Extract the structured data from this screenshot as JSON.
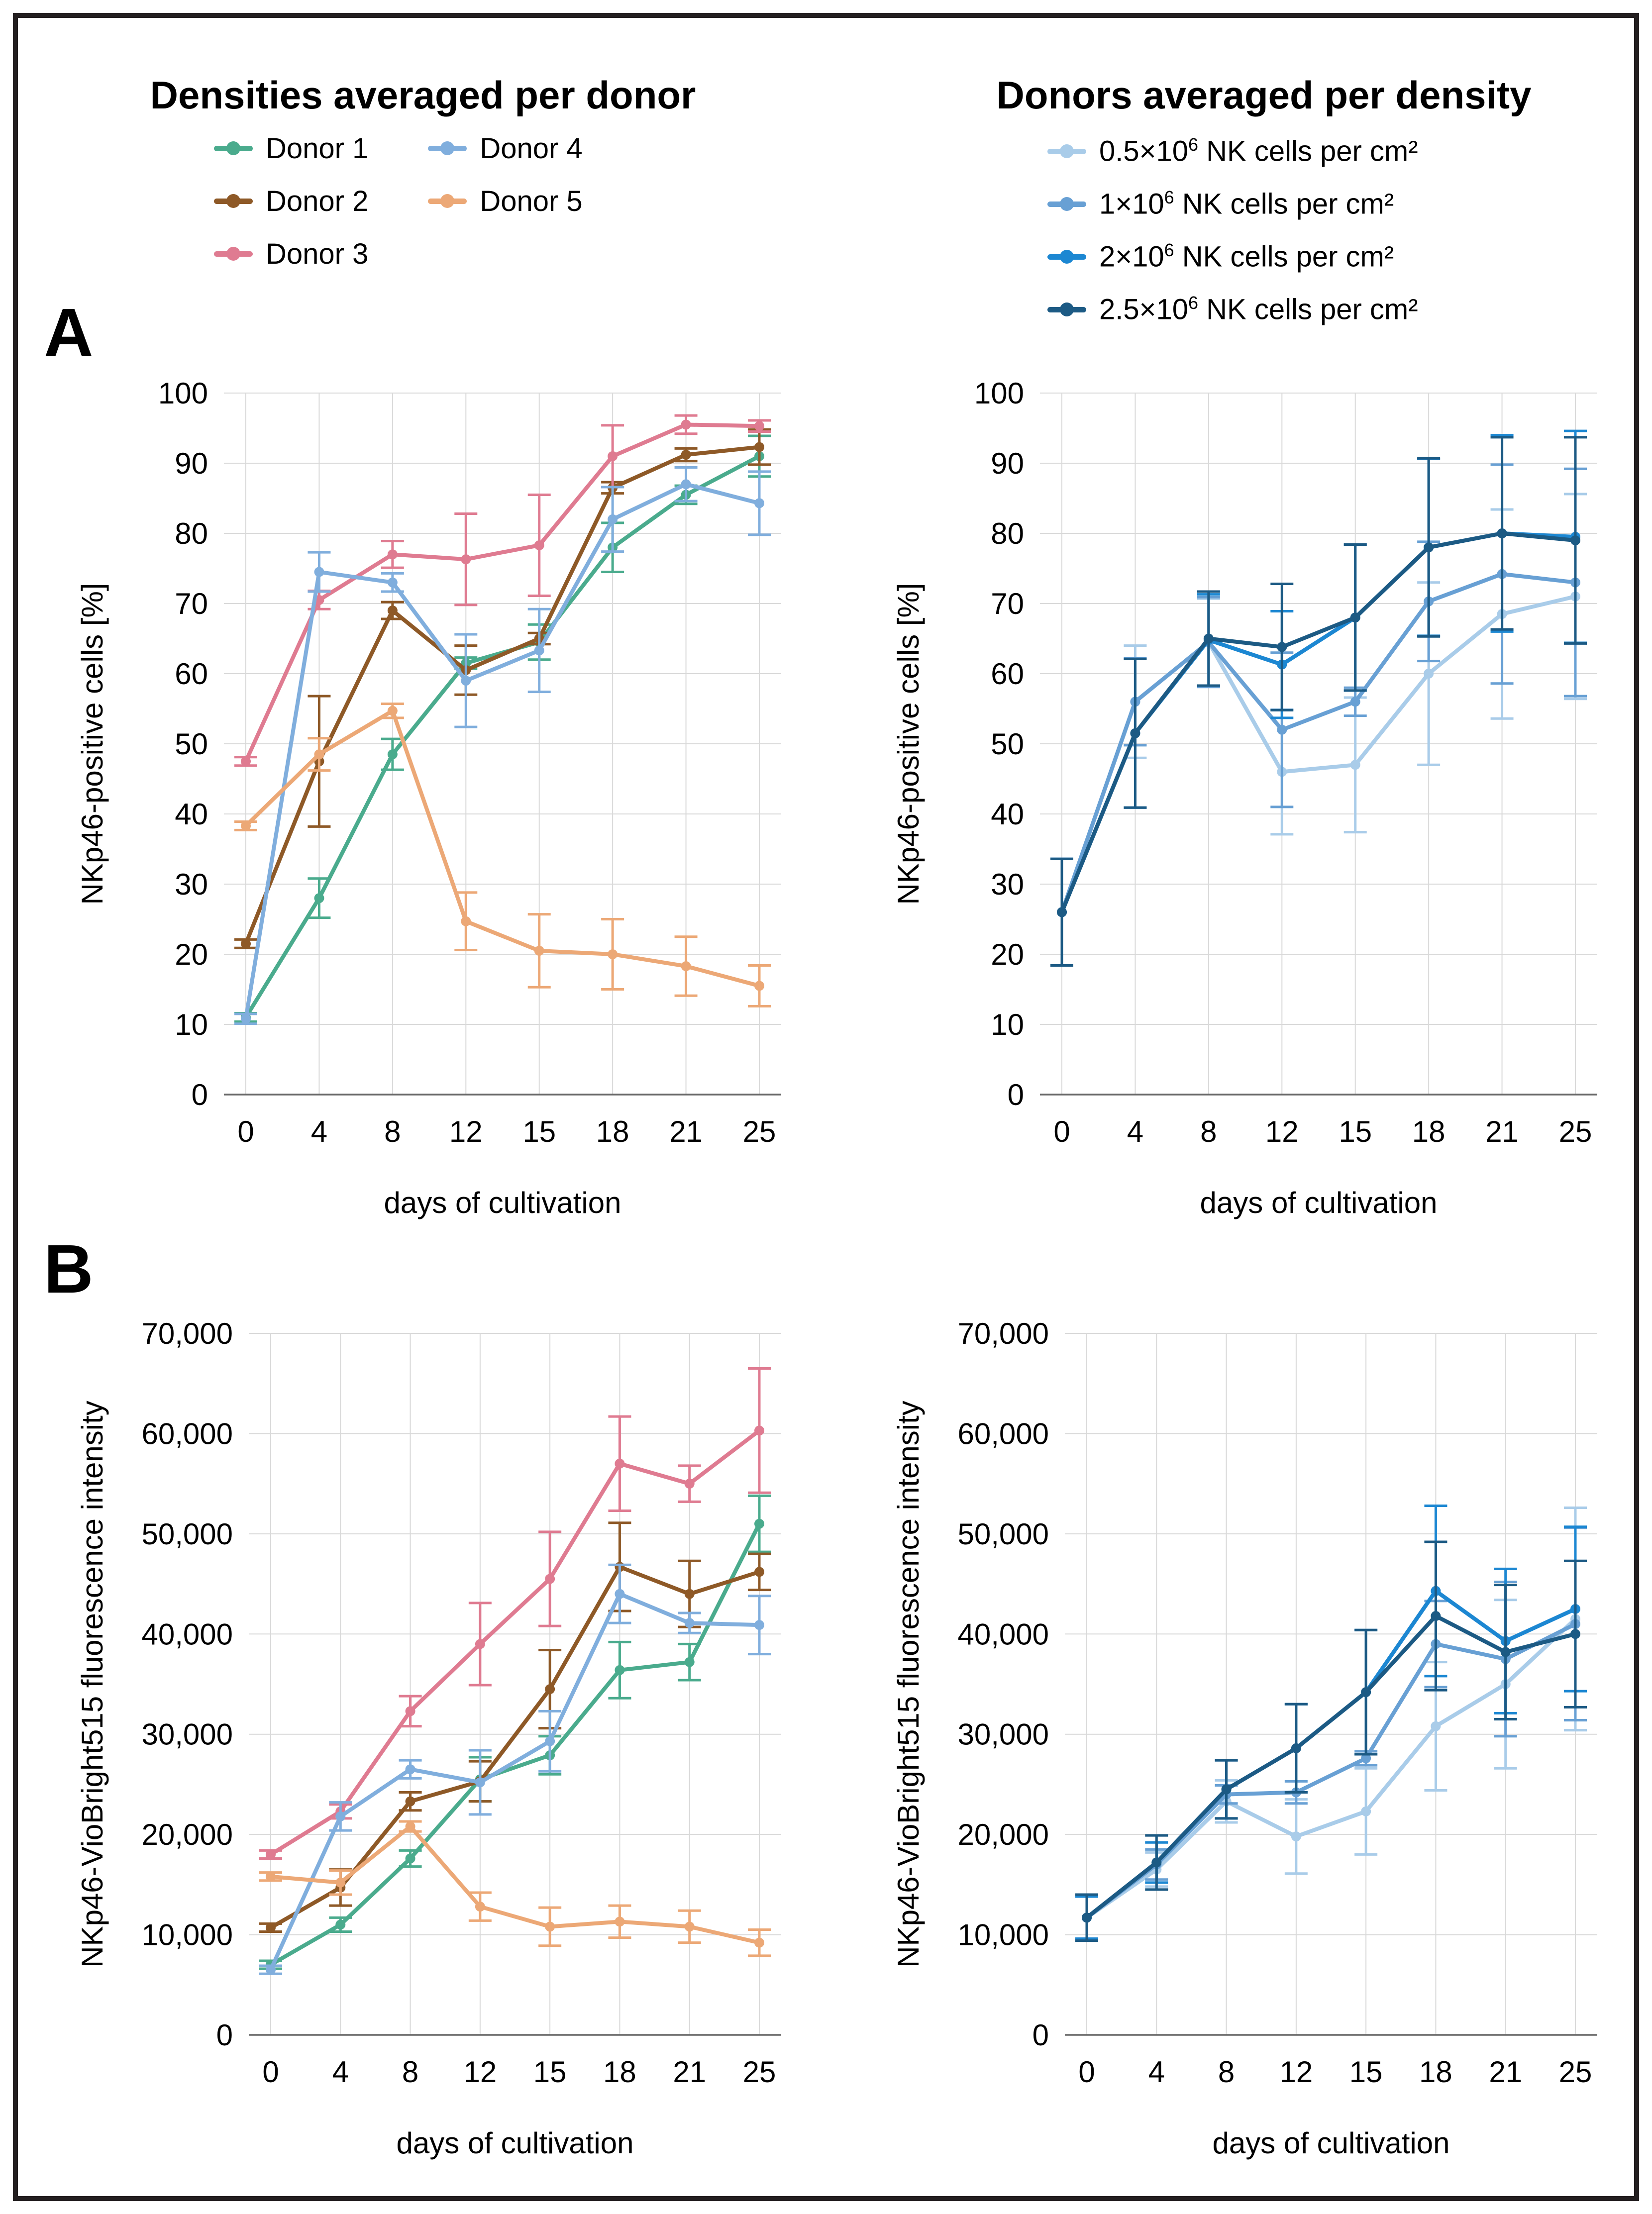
{
  "figure": {
    "panel_a_label": "A",
    "panel_b_label": "B",
    "left_title": "Densities averaged per donor",
    "right_title": "Donors averaged per density",
    "xlabel": "days of cultivation",
    "ylabel_percent": "NKp46-positive cells [%]",
    "ylabel_fluorescence": "NKp46-VioBright515 fluorescence intensity"
  },
  "colors": {
    "donor1": "#4aab8d",
    "donor2": "#8e5927",
    "donor3": "#df7b91",
    "donor4": "#80aedd",
    "donor5": "#eca876",
    "density05": "#a9cce9",
    "density1": "#68a0d4",
    "density2": "#1c87d2",
    "density25": "#1c5a84",
    "gridline": "#d9d9d9",
    "axis": "#6a6a6a"
  },
  "legend_donors": {
    "items": [
      {
        "label": "Donor 1",
        "color": "#4aab8d"
      },
      {
        "label": "Donor 2",
        "color": "#8e5927"
      },
      {
        "label": "Donor 3",
        "color": "#df7b91"
      },
      {
        "label": "Donor 4",
        "color": "#80aedd"
      },
      {
        "label": "Donor 5",
        "color": "#eca876"
      }
    ]
  },
  "legend_densities": {
    "items": [
      {
        "prefix": "0.5×10",
        "sup": "6",
        "suffix": " NK cells per cm²",
        "color": "#a9cce9"
      },
      {
        "prefix": "1×10",
        "sup": "6",
        "suffix": " NK cells per cm²",
        "color": "#68a0d4"
      },
      {
        "prefix": "2×10",
        "sup": "6",
        "suffix": " NK cells per cm²",
        "color": "#1c87d2"
      },
      {
        "prefix": "2.5×10",
        "sup": "6",
        "suffix": " NK cells per cm²",
        "color": "#1c5a84"
      }
    ]
  },
  "chart_data": [
    {
      "id": "a-left",
      "type": "line",
      "title": "Densities averaged per donor",
      "xlabel": "days of cultivation",
      "ylabel": "NKp46-positive cells [%]",
      "ylim": [
        0,
        100
      ],
      "ytick_step": 10,
      "grid": true,
      "categories": [
        0,
        4,
        8,
        12,
        15,
        18,
        21,
        25
      ],
      "series": [
        {
          "name": "Donor 1",
          "color": "#4aab8d",
          "values": [
            11,
            28,
            48.5,
            61.5,
            64.5,
            78,
            85.5,
            91
          ],
          "errors": [
            0.6,
            2.8,
            2.2,
            0.8,
            2.5,
            3.5,
            1.3,
            2.9
          ]
        },
        {
          "name": "Donor 2",
          "color": "#8e5927",
          "values": [
            21.5,
            47.5,
            69,
            60.5,
            65,
            86.5,
            91.2,
            92.3
          ],
          "errors": [
            0.6,
            9.3,
            1.2,
            3.5,
            0.8,
            0.8,
            0.9,
            2.5
          ]
        },
        {
          "name": "Donor 3",
          "color": "#df7b91",
          "values": [
            47.5,
            70.5,
            77,
            76.3,
            78.3,
            91,
            95.5,
            95.3
          ],
          "errors": [
            0.6,
            1.3,
            1.9,
            6.5,
            7.2,
            4.4,
            1.3,
            0.8
          ]
        },
        {
          "name": "Donor 4",
          "color": "#80aedd",
          "values": [
            10.8,
            74.5,
            73,
            59,
            63.3,
            82,
            87,
            84.3
          ],
          "errors": [
            0.7,
            2.8,
            1.3,
            6.6,
            5.9,
            4.6,
            2.4,
            4.5
          ]
        },
        {
          "name": "Donor 5",
          "color": "#eca876",
          "values": [
            38.3,
            48.5,
            54.7,
            24.7,
            20.5,
            20,
            18.3,
            15.5
          ],
          "errors": [
            0.6,
            2.3,
            1,
            4.1,
            5.2,
            5,
            4.2,
            2.9
          ]
        }
      ]
    },
    {
      "id": "a-right",
      "type": "line",
      "title": "Donors averaged per density",
      "xlabel": "days of cultivation",
      "ylabel": "NKp46-positive cells [%]",
      "ylim": [
        0,
        100
      ],
      "ytick_step": 10,
      "grid": true,
      "categories": [
        0,
        4,
        8,
        12,
        15,
        18,
        21,
        25
      ],
      "series": [
        {
          "name": "0.5×10⁶ NK cells per cm²",
          "color": "#a9cce9",
          "values": [
            26,
            56,
            64.5,
            46,
            47,
            60,
            68.5,
            71
          ],
          "errors": [
            7.6,
            8,
            6.2,
            8.9,
            9.6,
            13,
            14.9,
            14.6
          ]
        },
        {
          "name": "1×10⁶ NK cells per cm²",
          "color": "#68a0d4",
          "values": [
            26,
            56,
            64.5,
            52,
            56,
            70.3,
            74.2,
            73
          ],
          "errors": [
            7.6,
            6.2,
            6.4,
            11,
            2,
            8.5,
            15.6,
            16.2
          ]
        },
        {
          "name": "2×10⁶ NK cells per cm²",
          "color": "#1c87d2",
          "values": [
            26,
            51.5,
            64.8,
            61.3,
            68,
            78,
            80,
            79.5
          ],
          "errors": [
            7.6,
            10.6,
            6.5,
            7.6,
            10.4,
            12.6,
            14,
            15.1
          ]
        },
        {
          "name": "2.5×10⁶ NK cells per cm²",
          "color": "#1c5a84",
          "values": [
            26,
            51.5,
            65,
            63.8,
            68,
            78,
            80,
            79
          ],
          "errors": [
            7.6,
            10.6,
            6.7,
            9,
            10.4,
            12.7,
            13.7,
            14.7
          ]
        }
      ]
    },
    {
      "id": "b-left",
      "type": "line",
      "title": "Densities averaged per donor",
      "xlabel": "days of cultivation",
      "ylabel": "NKp46-VioBright515 fluorescence intensity",
      "ylim": [
        0,
        70000
      ],
      "ytick_step": 10000,
      "grid": true,
      "categories": [
        0,
        4,
        8,
        12,
        15,
        18,
        21,
        25
      ],
      "series": [
        {
          "name": "Donor 1",
          "color": "#4aab8d",
          "values": [
            7000,
            11000,
            17600,
            25500,
            27900,
            36400,
            37200,
            51000
          ],
          "errors": [
            400,
            700,
            800,
            2200,
            1900,
            2800,
            1800,
            2800
          ]
        },
        {
          "name": "Donor 2",
          "color": "#8e5927",
          "values": [
            10700,
            14700,
            23300,
            25300,
            34500,
            46700,
            44000,
            46200
          ],
          "errors": [
            400,
            1800,
            900,
            2000,
            3900,
            4400,
            3300,
            1800
          ]
        },
        {
          "name": "Donor 3",
          "color": "#df7b91",
          "values": [
            18000,
            22300,
            32300,
            39000,
            45500,
            57000,
            55000,
            60300
          ],
          "errors": [
            400,
            700,
            1500,
            4100,
            4700,
            4700,
            1800,
            6200
          ]
        },
        {
          "name": "Donor 4",
          "color": "#80aedd",
          "values": [
            6500,
            21800,
            26500,
            25200,
            29300,
            44000,
            41100,
            40900
          ],
          "errors": [
            400,
            1400,
            900,
            3200,
            3000,
            2900,
            1000,
            2900
          ]
        },
        {
          "name": "Donor 5",
          "color": "#eca876",
          "values": [
            15800,
            15200,
            20800,
            12800,
            10800,
            11300,
            10800,
            9200
          ],
          "errors": [
            400,
            1200,
            500,
            1400,
            1900,
            1600,
            1600,
            1300
          ]
        }
      ]
    },
    {
      "id": "b-right",
      "type": "line",
      "title": "Donors averaged per density",
      "xlabel": "days of cultivation",
      "ylabel": "NKp46-VioBright515 fluorescence intensity",
      "ylim": [
        0,
        70000
      ],
      "ytick_step": 10000,
      "grid": true,
      "categories": [
        0,
        4,
        8,
        12,
        15,
        18,
        21,
        25
      ],
      "series": [
        {
          "name": "0.5×10⁶ NK cells per cm²",
          "color": "#a9cce9",
          "values": [
            11700,
            16500,
            23300,
            19800,
            22300,
            30800,
            35000,
            41500
          ],
          "errors": [
            2100,
            1700,
            2100,
            3700,
            4300,
            6400,
            8400,
            11100
          ]
        },
        {
          "name": "1×10⁶ NK cells per cm²",
          "color": "#68a0d4",
          "values": [
            11700,
            17000,
            24000,
            24200,
            27600,
            39000,
            37500,
            41000
          ],
          "errors": [
            2100,
            1500,
            900,
            1100,
            700,
            4300,
            7700,
            9600
          ]
        },
        {
          "name": "2×10⁶ NK cells per cm²",
          "color": "#1c87d2",
          "values": [
            11700,
            17200,
            24500,
            28600,
            34200,
            44300,
            39300,
            42500
          ],
          "errors": [
            2100,
            2000,
            2900,
            4400,
            6200,
            8500,
            7200,
            8200
          ]
        },
        {
          "name": "2.5×10⁶ NK cells per cm²",
          "color": "#1c5a84",
          "values": [
            11700,
            17200,
            24500,
            28600,
            34200,
            41800,
            38200,
            40000
          ],
          "errors": [
            2300,
            2700,
            2900,
            4400,
            6200,
            7400,
            6700,
            7300
          ]
        }
      ]
    }
  ]
}
